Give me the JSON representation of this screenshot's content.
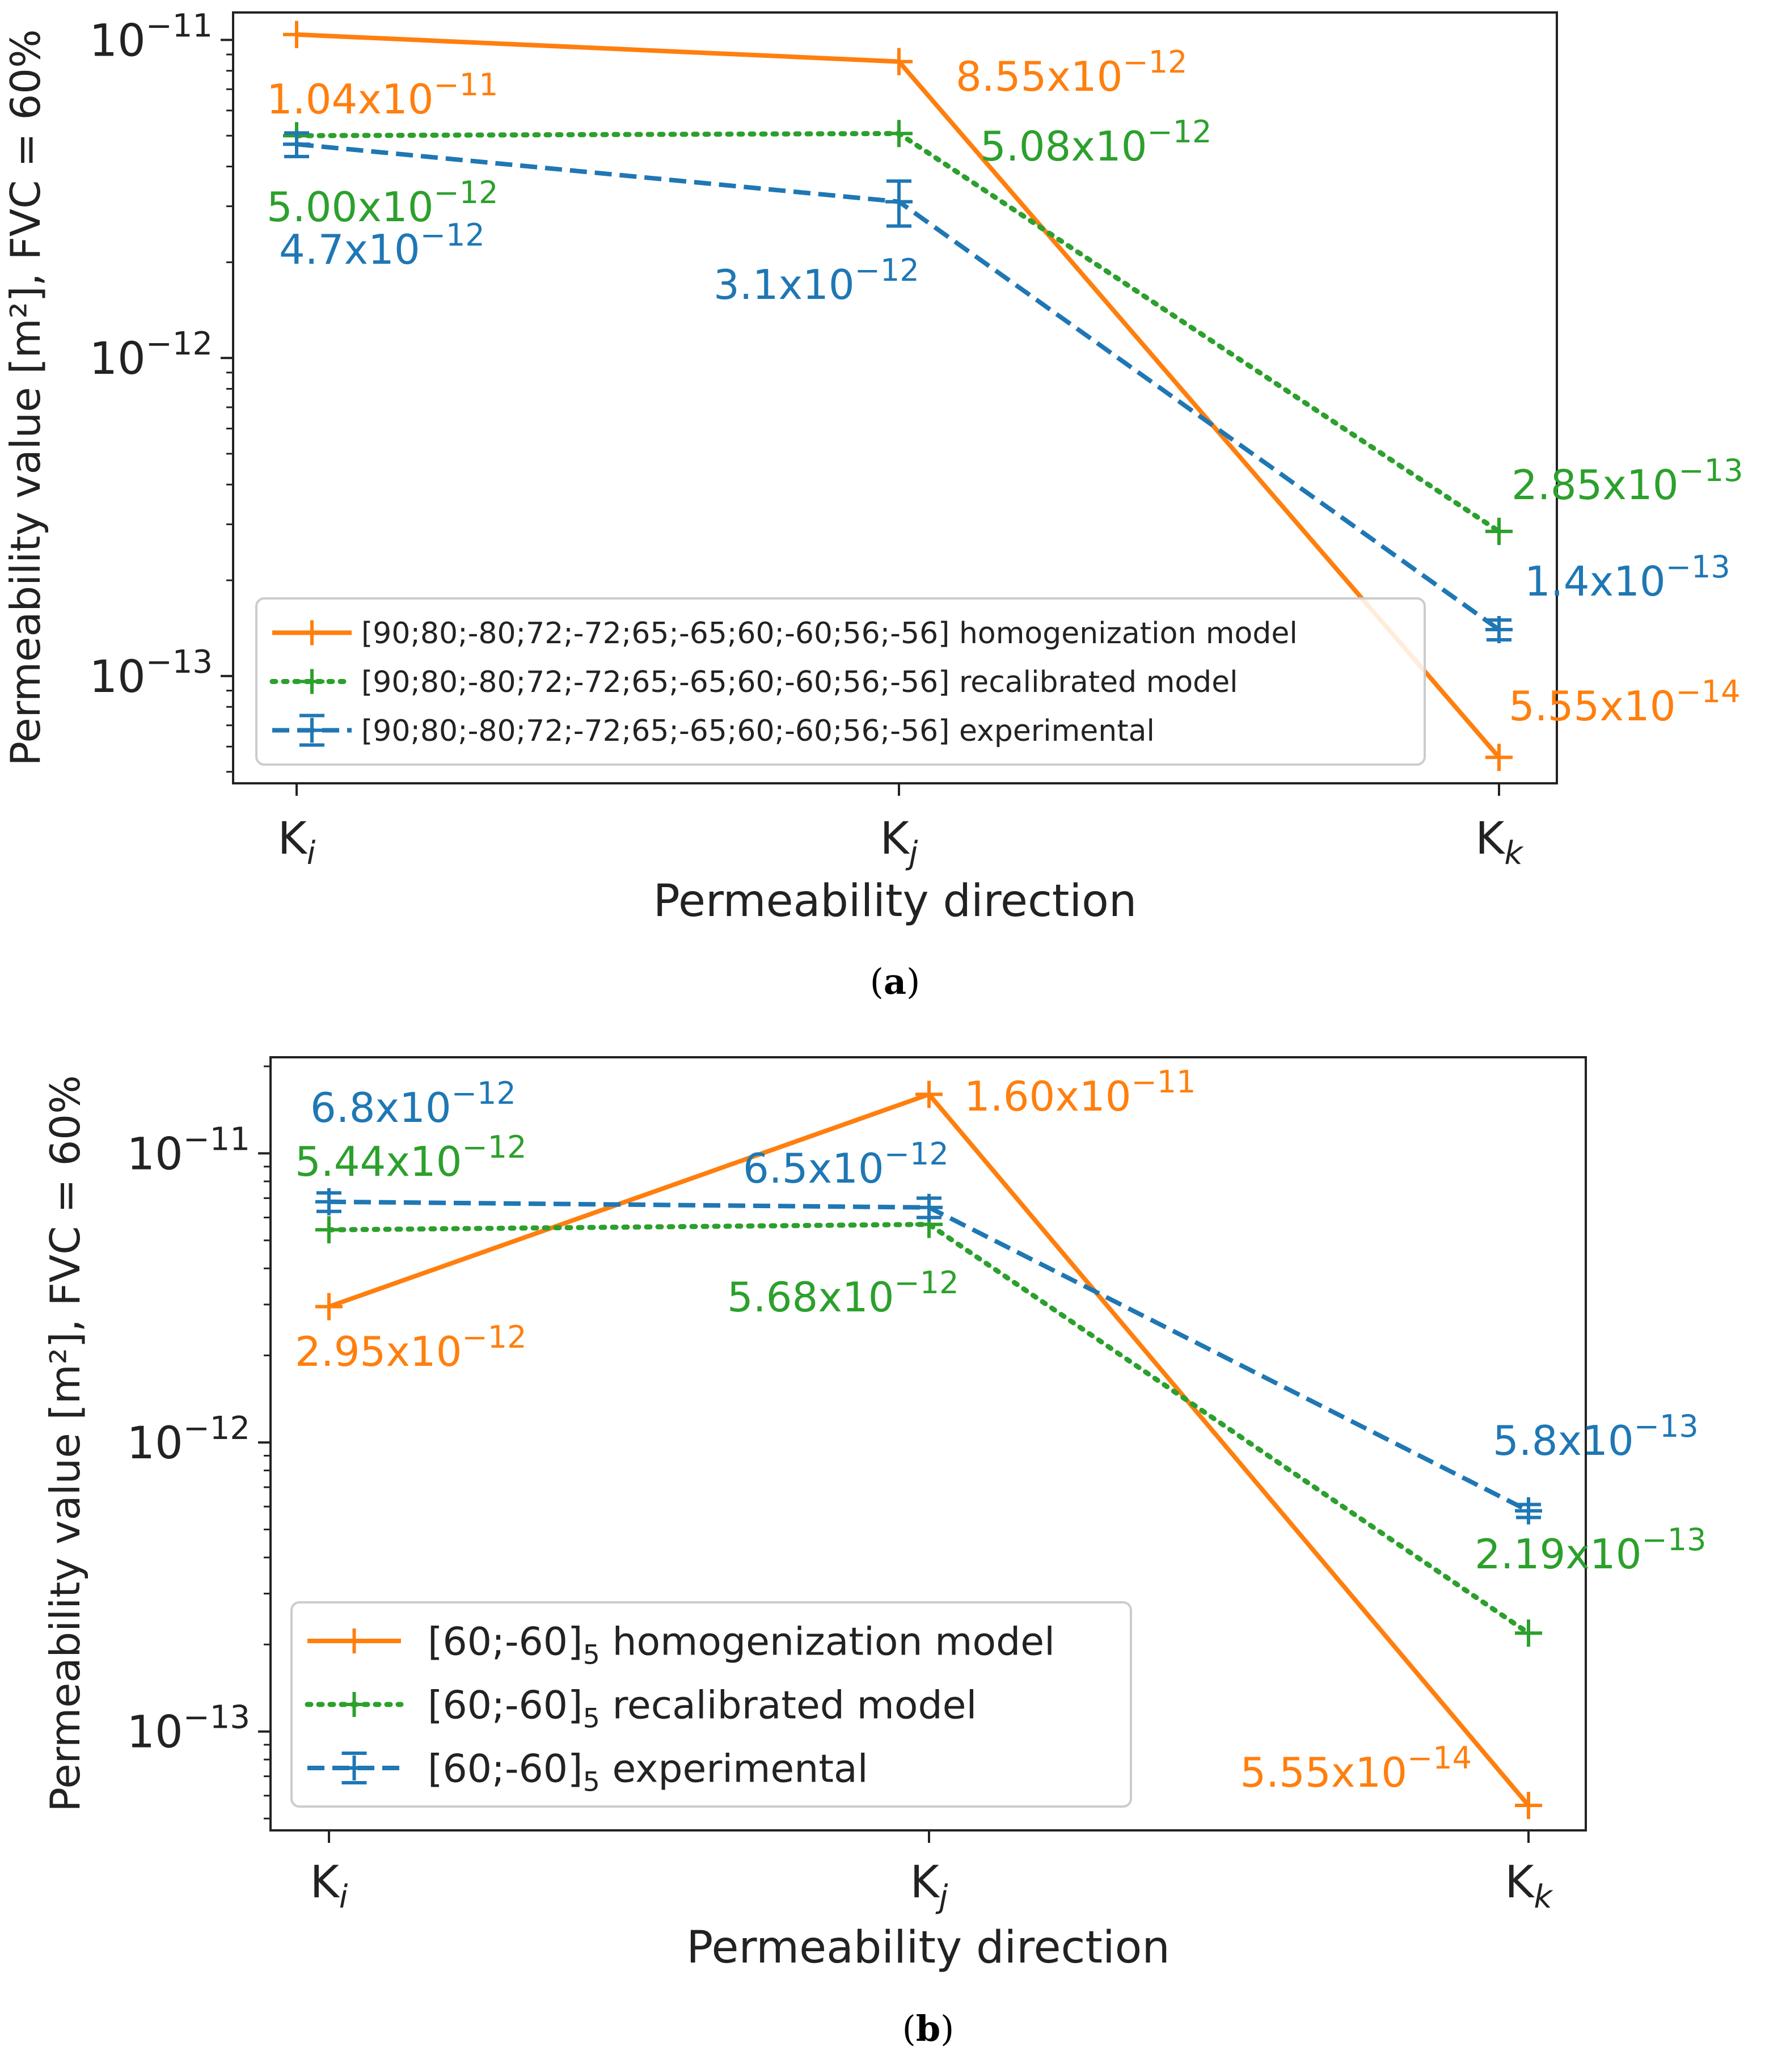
{
  "colors": {
    "homogenization": "#ff7f0e",
    "recalibrated": "#2ca02c",
    "experimental": "#1f77b4",
    "axis": "#222222",
    "legend_border": "#cccccc"
  },
  "chart_data": [
    {
      "type": "line",
      "panel_label": "(a)",
      "panel_letter": "a",
      "ylog": true,
      "ylim": [
        4.6e-14,
        1.22e-11
      ],
      "xlabel": "Permeability direction",
      "ylabel": "Permeability value [m²], FVC = 60%",
      "categories": [
        "Ki",
        "Kj",
        "Kk"
      ],
      "ytick_values": [
        1e-11,
        1e-12,
        1e-13
      ],
      "ytick_exponents": [
        "−11",
        "−12",
        "−13"
      ],
      "legend_location": "lower-left",
      "series": [
        {
          "name": "[90;80;-80;72;-72;65;-65;60;-60;56;-56] homogenization model",
          "key": "homogenization",
          "linestyle": "solid",
          "values": [
            1.04e-11,
            8.55e-12,
            5.55e-14
          ],
          "labels": [
            {
              "mantissa": "1.04",
              "exponent": "−11"
            },
            {
              "mantissa": "8.55",
              "exponent": "−12"
            },
            {
              "mantissa": "5.55",
              "exponent": "−14"
            }
          ]
        },
        {
          "name": "[90;80;-80;72;-72;65;-65;60;-60;56;-56] recalibrated model",
          "key": "recalibrated",
          "linestyle": "dotted",
          "values": [
            5e-12,
            5.08e-12,
            2.85e-13
          ],
          "labels": [
            {
              "mantissa": "5.00",
              "exponent": "−12"
            },
            {
              "mantissa": "5.08",
              "exponent": "−12"
            },
            {
              "mantissa": "2.85",
              "exponent": "−13"
            }
          ]
        },
        {
          "name": "[90;80;-80;72;-72;65;-65;60;-60;56;-56] experimental",
          "key": "experimental",
          "linestyle": "dashed",
          "error_bars": true,
          "values": [
            4.7e-12,
            3.1e-12,
            1.4e-13
          ],
          "errors": [
            4e-13,
            5e-13,
            1e-14
          ],
          "labels": [
            {
              "mantissa": "4.7",
              "exponent": "−12"
            },
            {
              "mantissa": "3.1",
              "exponent": "−12"
            },
            {
              "mantissa": "1.4",
              "exponent": "−13"
            }
          ]
        }
      ]
    },
    {
      "type": "line",
      "panel_label": "(b)",
      "panel_letter": "b",
      "ylog": true,
      "ylim": [
        4.55e-14,
        2.15e-11
      ],
      "xlabel": "Permeability direction",
      "ylabel": "Permeability value [m²], FVC = 60%",
      "categories": [
        "Ki",
        "Kj",
        "Kk"
      ],
      "ytick_values": [
        1e-11,
        1e-12,
        1e-13
      ],
      "ytick_exponents": [
        "−11",
        "−12",
        "−13"
      ],
      "legend_location": "lower-left",
      "series": [
        {
          "name": "[60;-60]5 homogenization model",
          "name_prefix": "[60;-60]",
          "name_sub": "5",
          "name_suffix": " homogenization model",
          "key": "homogenization",
          "linestyle": "solid",
          "values": [
            2.95e-12,
            1.6e-11,
            5.55e-14
          ],
          "labels": [
            {
              "mantissa": "2.95",
              "exponent": "−12"
            },
            {
              "mantissa": "1.60",
              "exponent": "−11"
            },
            {
              "mantissa": "5.55",
              "exponent": "−14"
            }
          ]
        },
        {
          "name": "[60;-60]5 recalibrated model",
          "name_prefix": "[60;-60]",
          "name_sub": "5",
          "name_suffix": " recalibrated model",
          "key": "recalibrated",
          "linestyle": "dotted",
          "values": [
            5.44e-12,
            5.68e-12,
            2.19e-13
          ],
          "labels": [
            {
              "mantissa": "5.44",
              "exponent": "−12"
            },
            {
              "mantissa": "5.68",
              "exponent": "−12"
            },
            {
              "mantissa": "2.19",
              "exponent": "−13"
            }
          ]
        },
        {
          "name": "[60;-60]5 experimental",
          "name_prefix": "[60;-60]",
          "name_sub": "5",
          "name_suffix": " experimental",
          "key": "experimental",
          "linestyle": "dashed",
          "error_bars": true,
          "values": [
            6.8e-12,
            6.5e-12,
            5.8e-13
          ],
          "errors": [
            5e-13,
            5e-13,
            3e-14
          ],
          "labels": [
            {
              "mantissa": "6.8",
              "exponent": "−12"
            },
            {
              "mantissa": "6.5",
              "exponent": "−12"
            },
            {
              "mantissa": "5.8",
              "exponent": "−13"
            }
          ]
        }
      ]
    }
  ]
}
